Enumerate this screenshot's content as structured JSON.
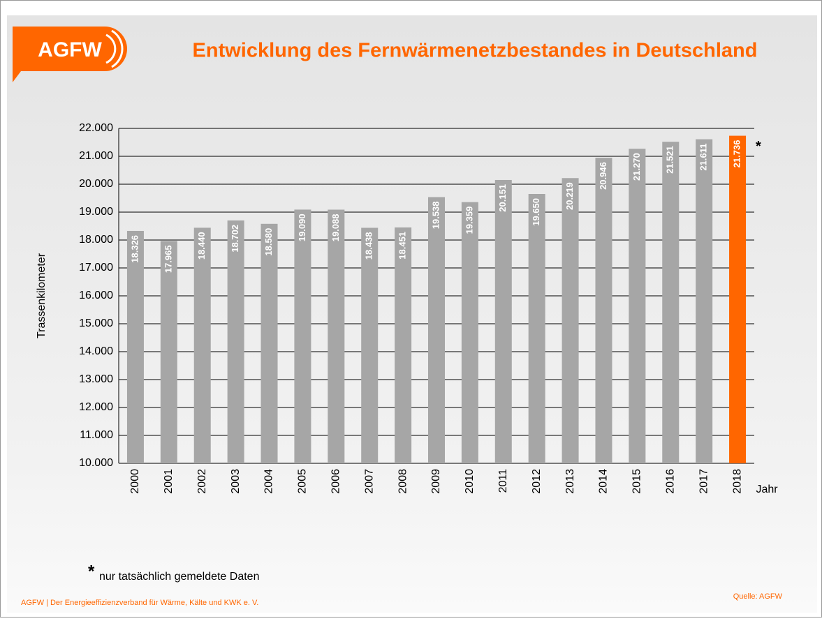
{
  "chart_data": {
    "type": "bar",
    "logo": "AGFW",
    "title": "Entwicklung des Fernwärmenetzbestandes in Deutschland",
    "y_label": "Trassenkilometer",
    "x_label": "Jahr",
    "categories": [
      "2000",
      "2001",
      "2002",
      "2003",
      "2004",
      "2005",
      "2006",
      "2007",
      "2008",
      "2009",
      "2010",
      "2011",
      "2012",
      "2013",
      "2014",
      "2015",
      "2016",
      "2017",
      "2018"
    ],
    "values": [
      18326,
      17965,
      18440,
      18702,
      18580,
      19090,
      19088,
      18438,
      18451,
      19538,
      19359,
      20151,
      19650,
      20219,
      20946,
      21270,
      21521,
      21611,
      21736
    ],
    "value_labels": [
      "18.326",
      "17.965",
      "18.440",
      "18.702",
      "18.580",
      "19.090",
      "19.088",
      "18.438",
      "18.451",
      "19.538",
      "19.359",
      "20.151",
      "19.650",
      "20.219",
      "20.946",
      "21.270",
      "21.521",
      "21.611",
      "21.736"
    ],
    "colors": [
      "#a6a6a6",
      "#a6a6a6",
      "#a6a6a6",
      "#a6a6a6",
      "#a6a6a6",
      "#a6a6a6",
      "#a6a6a6",
      "#a6a6a6",
      "#a6a6a6",
      "#a6a6a6",
      "#a6a6a6",
      "#a6a6a6",
      "#a6a6a6",
      "#a6a6a6",
      "#a6a6a6",
      "#a6a6a6",
      "#a6a6a6",
      "#a6a6a6",
      "#ff6600"
    ],
    "ylim": [
      10000,
      22000
    ],
    "yticks": [
      {
        "value": 10000,
        "label": "10.000"
      },
      {
        "value": 11000,
        "label": "11.000"
      },
      {
        "value": 12000,
        "label": "12.000"
      },
      {
        "value": 13000,
        "label": "13.000"
      },
      {
        "value": 14000,
        "label": "14.000"
      },
      {
        "value": 15000,
        "label": "15.000"
      },
      {
        "value": 16000,
        "label": "16.000"
      },
      {
        "value": 17000,
        "label": "17.000"
      },
      {
        "value": 18000,
        "label": "18.000"
      },
      {
        "value": 19000,
        "label": "19.000"
      },
      {
        "value": 20000,
        "label": "20.000"
      },
      {
        "value": 21000,
        "label": "21.000"
      },
      {
        "value": 22000,
        "label": "22.000"
      }
    ],
    "grid": true,
    "annotation": "*",
    "footnote_marker": "*",
    "footnote": "nur tatsächlich gemeldete Daten",
    "footer": "AGFW | Der Energieeffizienzverband für Wärme, Kälte und KWK e. V.",
    "source": "Quelle: AGFW"
  }
}
